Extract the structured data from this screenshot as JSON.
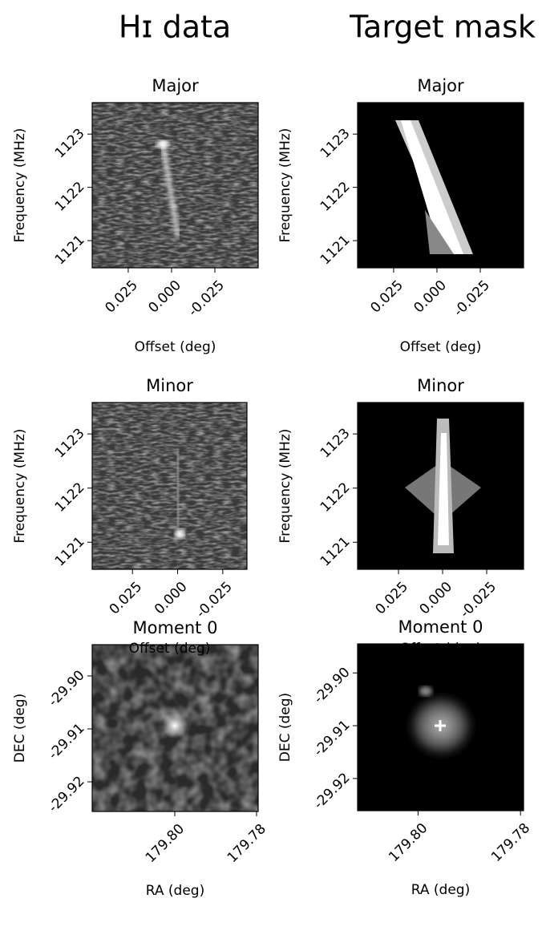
{
  "column_titles": [
    "Hɪ data",
    "Target mask"
  ],
  "chart_data": [
    {
      "type": "image",
      "title": "Major",
      "xlabel": "Offset (deg)",
      "ylabel": "Frequency (MHz)",
      "xlim": [
        0.0458,
        -0.05
      ],
      "ylim": [
        1120.49,
        1123.59
      ],
      "xticks": [
        0.025,
        {
          "value": 0,
          "label": "0.000"
        },
        -0.025
      ],
      "yticks": [
        1121,
        1122,
        1123
      ]
    },
    {
      "type": "image",
      "title": "Major",
      "xlabel": "Offset (deg)",
      "ylabel": "Frequency (MHz)",
      "xlim": [
        0.0458,
        -0.05
      ],
      "ylim": [
        1120.49,
        1123.59
      ],
      "xticks": [
        0.025,
        {
          "value": 0,
          "label": "0.000"
        },
        -0.025
      ],
      "yticks": [
        1121,
        1122,
        1123
      ]
    },
    {
      "type": "image",
      "title": "Minor",
      "xlabel": "Offset (deg)",
      "ylabel": "Frequency (MHz)",
      "xlim": [
        0.0473,
        -0.0384
      ],
      "ylim": [
        1120.5,
        1123.58
      ],
      "xticks": [
        0.025,
        {
          "value": 0,
          "label": "0.000"
        },
        -0.025
      ],
      "yticks": [
        1121,
        1122,
        1123
      ]
    },
    {
      "type": "image",
      "title": "Minor",
      "xlabel": "Offset (deg)",
      "ylabel": "Frequency (MHz)",
      "xlim": [
        0.0482,
        -0.0459
      ],
      "ylim": [
        1120.5,
        1123.58
      ],
      "xticks": [
        0.025,
        {
          "value": 0,
          "label": "0.000"
        },
        -0.025
      ],
      "yticks": [
        1121,
        1122,
        1123
      ]
    },
    {
      "type": "image",
      "title": "Moment 0",
      "xlabel": "RA (deg)",
      "ylabel": "DEC (deg)",
      "xlim": [
        179.8202,
        179.7796
      ],
      "ylim": [
        -29.9256,
        -29.8941
      ],
      "xticks": [
        {
          "value": 179.8,
          "label": "179.80"
        },
        179.78
      ],
      "yticks": [
        {
          "value": -29.9,
          "label": "-29.90"
        },
        -29.91,
        -29.92
      ]
    },
    {
      "type": "image",
      "title": "Moment 0",
      "xlabel": "RA (deg)",
      "ylabel": "DEC (deg)",
      "xlim": [
        179.8118,
        179.7794
      ],
      "ylim": [
        -29.9261,
        -29.8945
      ],
      "xticks": [
        {
          "value": 179.8,
          "label": "179.80"
        },
        179.78
      ],
      "yticks": [
        {
          "value": -29.9,
          "label": "-29.90"
        },
        -29.91,
        -29.92
      ]
    }
  ]
}
